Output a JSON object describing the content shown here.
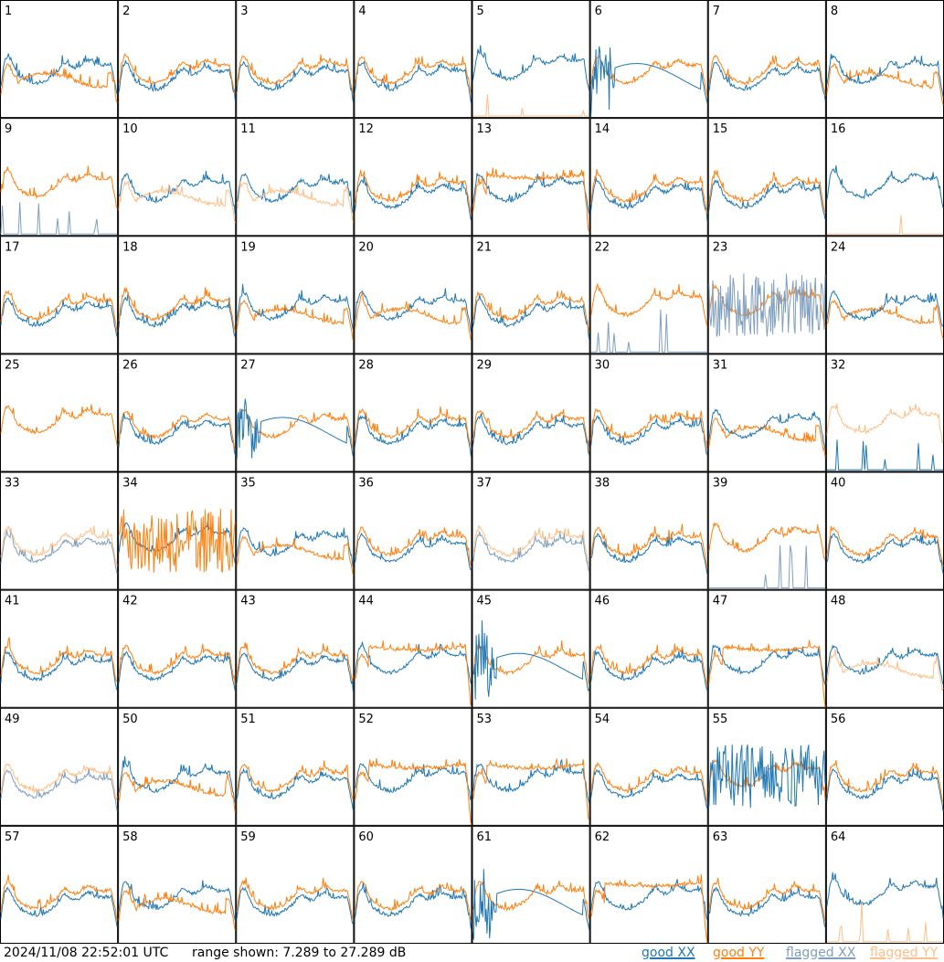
{
  "chart_data": {
    "type": "line",
    "title": "",
    "grid": {
      "rows": 8,
      "cols": 8
    },
    "ylim_db": [
      7.289,
      27.289
    ],
    "panels": [
      {
        "n": "1",
        "p": "xa"
      },
      {
        "n": "2",
        "p": "n"
      },
      {
        "n": "3",
        "p": "n"
      },
      {
        "n": "4",
        "p": "n"
      },
      {
        "n": "5",
        "p": "xh",
        "s": "ys"
      },
      {
        "n": "6",
        "p": "xd"
      },
      {
        "n": "7",
        "p": "n"
      },
      {
        "n": "8",
        "p": "ya"
      },
      {
        "n": "9",
        "p": "yo",
        "s": "xs"
      },
      {
        "n": "10",
        "p": "xf"
      },
      {
        "n": "11",
        "p": "xf"
      },
      {
        "n": "12",
        "p": "n"
      },
      {
        "n": "13",
        "p": "yd"
      },
      {
        "n": "14",
        "p": "n"
      },
      {
        "n": "15",
        "p": "n"
      },
      {
        "n": "16",
        "p": "xo",
        "s": "ys"
      },
      {
        "n": "17",
        "p": "n"
      },
      {
        "n": "18",
        "p": "n"
      },
      {
        "n": "19",
        "p": "ya"
      },
      {
        "n": "20",
        "p": "xa"
      },
      {
        "n": "21",
        "p": "n"
      },
      {
        "n": "22",
        "p": "yo",
        "s": "xs"
      },
      {
        "n": "23",
        "p": "yo",
        "s": "xj"
      },
      {
        "n": "24",
        "p": "ya"
      },
      {
        "n": "25",
        "p": "yo"
      },
      {
        "n": "26",
        "p": "n"
      },
      {
        "n": "27",
        "p": "xd"
      },
      {
        "n": "28",
        "p": "n"
      },
      {
        "n": "29",
        "p": "n"
      },
      {
        "n": "30",
        "p": "n"
      },
      {
        "n": "31",
        "p": "ya"
      },
      {
        "n": "32",
        "p": "yf",
        "s": "xs"
      },
      {
        "n": "33",
        "p": "nf"
      },
      {
        "n": "34",
        "p": "xo",
        "s": "yj"
      },
      {
        "n": "35",
        "p": "xa"
      },
      {
        "n": "36",
        "p": "n"
      },
      {
        "n": "37",
        "p": "nf"
      },
      {
        "n": "38",
        "p": "n"
      },
      {
        "n": "39",
        "p": "yo",
        "s": "xs"
      },
      {
        "n": "40",
        "p": "n"
      },
      {
        "n": "41",
        "p": "n"
      },
      {
        "n": "42",
        "p": "n"
      },
      {
        "n": "43",
        "p": "n"
      },
      {
        "n": "44",
        "p": "yd"
      },
      {
        "n": "45",
        "p": "xd"
      },
      {
        "n": "46",
        "p": "n"
      },
      {
        "n": "47",
        "p": "yd"
      },
      {
        "n": "48",
        "p": "xf"
      },
      {
        "n": "49",
        "p": "nf"
      },
      {
        "n": "50",
        "p": "xa"
      },
      {
        "n": "51",
        "p": "n"
      },
      {
        "n": "52",
        "p": "yd"
      },
      {
        "n": "53",
        "p": "yd"
      },
      {
        "n": "54",
        "p": "n"
      },
      {
        "n": "55",
        "p": "yo",
        "s": "xj"
      },
      {
        "n": "56",
        "p": "n"
      },
      {
        "n": "57",
        "p": "n"
      },
      {
        "n": "58",
        "p": "xa"
      },
      {
        "n": "59",
        "p": "n"
      },
      {
        "n": "60",
        "p": "n"
      },
      {
        "n": "61",
        "p": "xd"
      },
      {
        "n": "62",
        "p": "yd"
      },
      {
        "n": "63",
        "p": "n"
      },
      {
        "n": "64",
        "p": "xo",
        "s": "ys"
      }
    ],
    "legend": [
      {
        "label": "good XX",
        "color": "#1f77b4"
      },
      {
        "label": "good YY",
        "color": "#ff7f0e"
      },
      {
        "label": "flagged XX",
        "color": "#7f9fbf"
      },
      {
        "label": "flagged YY",
        "color": "#ffbf87"
      }
    ]
  },
  "footer": {
    "timestamp": "2024/11/08 22:52:01 UTC",
    "range": "range shown: 7.289 to 27.289 dB"
  }
}
